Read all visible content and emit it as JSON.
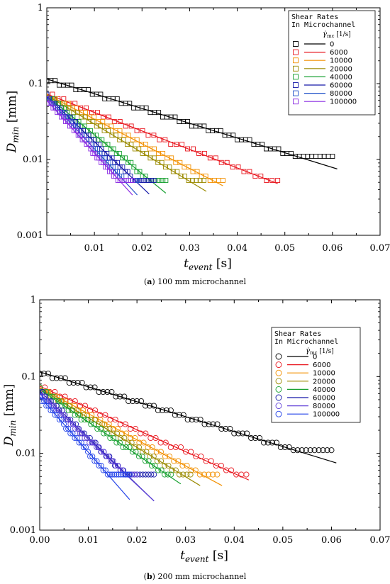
{
  "chart_data": [
    {
      "type": "scatter",
      "panel_label": "a",
      "caption": "100 mm microchannel",
      "xlabel_main": "t",
      "xlabel_sub": "event",
      "xlabel_unit": "[s]",
      "ylabel_main": "D",
      "ylabel_sub": "min",
      "ylabel_unit": "[mm]",
      "xlim": [
        0,
        0.07
      ],
      "ylim": [
        0.001,
        1
      ],
      "yscale": "log",
      "xticks": [
        "0.01",
        "0.02",
        "0.03",
        "0.04",
        "0.05",
        "0.06",
        "0.07"
      ],
      "yticks": [
        "0.001",
        "0.01",
        "0.1",
        "1"
      ],
      "marker": "square",
      "legend_title_1": "Shear Rates",
      "legend_title_2": "In Microchannel",
      "legend_unit_main": "γ̇",
      "legend_unit_sub": "mc",
      "legend_unit": "[1/s]",
      "legend_position": "top-right",
      "series": [
        {
          "name": "0",
          "color": "#000000",
          "line_start": [
            0.0,
            0.115
          ],
          "line_end": [
            0.061,
            0.0075
          ],
          "points_x": [
            0.0,
            0.06
          ],
          "points_y": [
            0.115,
            0.011
          ],
          "floor": 0.011
        },
        {
          "name": "6000",
          "color": "#e8141c",
          "line_start": [
            0.0,
            0.073
          ],
          "line_end": [
            0.0485,
            0.0048
          ],
          "points_x": [
            0.0,
            0.0485
          ],
          "points_y": [
            0.073,
            0.0053
          ],
          "floor": 0.0053
        },
        {
          "name": "10000",
          "color": "#f29000",
          "line_start": [
            0.0,
            0.072
          ],
          "line_end": [
            0.037,
            0.0045
          ],
          "points_x": [
            0.0,
            0.037
          ],
          "points_y": [
            0.072,
            0.0053
          ],
          "floor": 0.0053
        },
        {
          "name": "20000",
          "color": "#9a8a00",
          "line_start": [
            0.0,
            0.07
          ],
          "line_end": [
            0.0335,
            0.0038
          ],
          "points_x": [
            0.0,
            0.033
          ],
          "points_y": [
            0.07,
            0.0053
          ],
          "floor": 0.0053
        },
        {
          "name": "40000",
          "color": "#17a030",
          "line_start": [
            0.0,
            0.069
          ],
          "line_end": [
            0.025,
            0.0036
          ],
          "points_x": [
            0.0,
            0.025
          ],
          "points_y": [
            0.069,
            0.0053
          ],
          "floor": 0.0053
        },
        {
          "name": "60000",
          "color": "#1418a8",
          "line_start": [
            0.0,
            0.068
          ],
          "line_end": [
            0.0215,
            0.0035
          ],
          "points_x": [
            0.0,
            0.0225
          ],
          "points_y": [
            0.068,
            0.0053
          ],
          "floor": 0.0053
        },
        {
          "name": "80000",
          "color": "#1f50c8",
          "line_start": [
            0.0,
            0.066
          ],
          "line_end": [
            0.019,
            0.0034
          ],
          "points_x": [
            0.0,
            0.019
          ],
          "points_y": [
            0.066,
            0.0053
          ],
          "floor": 0.0053
        },
        {
          "name": "100000",
          "color": "#8a2be2",
          "line_start": [
            0.0,
            0.06
          ],
          "line_end": [
            0.018,
            0.0034
          ],
          "points_x": [
            0.0,
            0.018
          ],
          "points_y": [
            0.06,
            0.0053
          ],
          "floor": 0.0053
        }
      ]
    },
    {
      "type": "scatter",
      "panel_label": "b",
      "caption": "200 mm microchannel",
      "xlabel_main": "t",
      "xlabel_sub": "event",
      "xlabel_unit": "[s]",
      "ylabel_main": "D",
      "ylabel_sub": "min",
      "ylabel_unit": "[mm]",
      "xlim": [
        0,
        0.07
      ],
      "ylim": [
        0.001,
        1
      ],
      "yscale": "log",
      "xticks": [
        "0.00",
        "0.01",
        "0.02",
        "0.03",
        "0.04",
        "0.05",
        "0.06",
        "0.07"
      ],
      "yticks": [
        "0.001",
        "0.01",
        "0.1",
        "1"
      ],
      "marker": "circle",
      "legend_title_1": "Shear Rates",
      "legend_title_2": "In Microchannel",
      "legend_unit_main": "γ̇",
      "legend_unit_sub": "mc",
      "legend_unit": "[1/s]",
      "legend_position": "top-right",
      "series": [
        {
          "name": "0",
          "color": "#000000",
          "line_start": [
            0.0,
            0.115
          ],
          "line_end": [
            0.061,
            0.0075
          ],
          "points_x": [
            0.0,
            0.06
          ],
          "points_y": [
            0.115,
            0.011
          ],
          "floor": 0.011
        },
        {
          "name": "6000",
          "color": "#e8141c",
          "line_start": [
            0.0,
            0.075
          ],
          "line_end": [
            0.043,
            0.0045
          ],
          "points_x": [
            0.0,
            0.0425
          ],
          "points_y": [
            0.075,
            0.0053
          ],
          "floor": 0.0053
        },
        {
          "name": "10000",
          "color": "#f29000",
          "line_start": [
            0.0,
            0.072
          ],
          "line_end": [
            0.0375,
            0.0038
          ],
          "points_x": [
            0.0,
            0.0365
          ],
          "points_y": [
            0.072,
            0.0053
          ],
          "floor": 0.0053
        },
        {
          "name": "20000",
          "color": "#9a8a00",
          "line_start": [
            0.0,
            0.07
          ],
          "line_end": [
            0.033,
            0.0038
          ],
          "points_x": [
            0.0,
            0.031
          ],
          "points_y": [
            0.07,
            0.0053
          ],
          "floor": 0.0053
        },
        {
          "name": "40000",
          "color": "#17a030",
          "line_start": [
            0.0,
            0.068
          ],
          "line_end": [
            0.029,
            0.004
          ],
          "points_x": [
            0.0,
            0.027
          ],
          "points_y": [
            0.068,
            0.0053
          ],
          "floor": 0.0053
        },
        {
          "name": "60000",
          "color": "#1418a8",
          "line_start": [
            0.0,
            0.065
          ],
          "line_end": [
            0.0235,
            0.0024
          ],
          "points_x": [
            0.0,
            0.0235
          ],
          "points_y": [
            0.065,
            0.0053
          ],
          "floor": 0.0053
        },
        {
          "name": "80000",
          "color": "#6040d8",
          "line_start": [
            0.0,
            0.06
          ],
          "line_end": [
            0.0235,
            0.0024
          ],
          "points_x": [
            0.0,
            0.02
          ],
          "points_y": [
            0.06,
            0.0053
          ],
          "floor": 0.0053
        },
        {
          "name": "100000",
          "color": "#2040e8",
          "line_start": [
            0.0,
            0.055
          ],
          "line_end": [
            0.0185,
            0.0025
          ],
          "points_x": [
            0.0,
            0.0185
          ],
          "points_y": [
            0.055,
            0.0053
          ],
          "floor": 0.0053
        }
      ]
    }
  ]
}
